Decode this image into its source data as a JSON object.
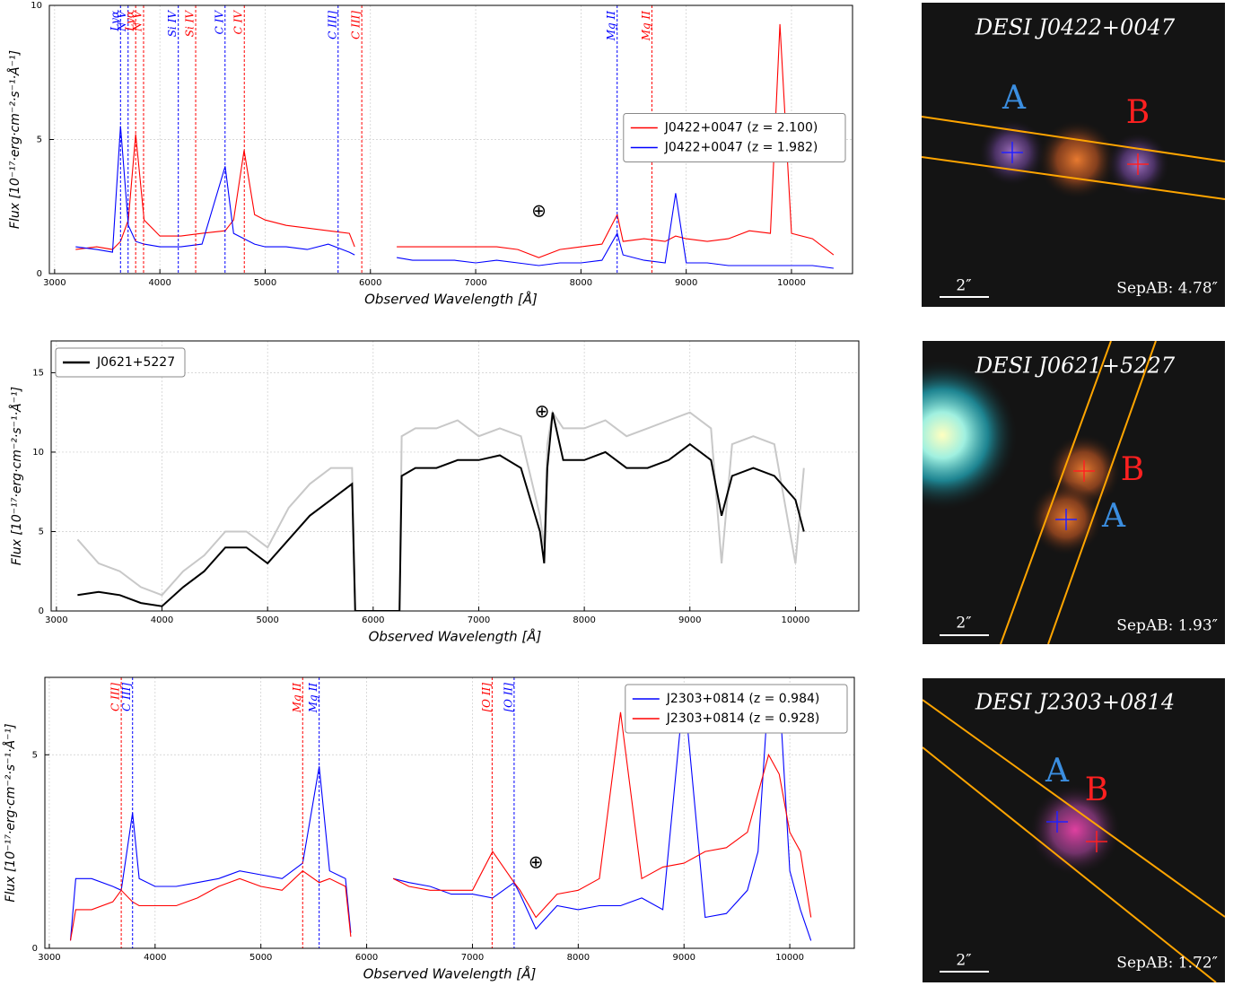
{
  "chart_data": [
    {
      "type": "line",
      "xlabel": "Observed Wavelength [Å]",
      "ylabel": "Flux [10⁻¹⁷·erg·cm⁻²·s⁻¹·Å⁻¹]",
      "xlim": [
        2950,
        10580
      ],
      "ylim": [
        0,
        10
      ],
      "xticks": [
        3000,
        4000,
        5000,
        6000,
        7000,
        8000,
        9000,
        10000
      ],
      "yticks": [
        0,
        5,
        10
      ],
      "grid": true,
      "legend": "center right",
      "x": [
        3200,
        3400,
        3550,
        3626,
        3700,
        3770,
        3850,
        4000,
        4200,
        4400,
        4620,
        4700,
        4800,
        4900,
        5000,
        5200,
        5400,
        5600,
        5800,
        5850,
        6000,
        6250,
        6400,
        6600,
        6800,
        7000,
        7200,
        7400,
        7600,
        7800,
        8000,
        8200,
        8345,
        8400,
        8600,
        8800,
        8900,
        9000,
        9200,
        9400,
        9600,
        9800,
        9890,
        10000,
        10200,
        10400
      ],
      "series": [
        {
          "name": "J0422+0047 (z = 2.100)",
          "color": "#ff0000",
          "values": [
            0.9,
            1.0,
            0.9,
            1.2,
            2.0,
            5.2,
            2.0,
            1.4,
            1.4,
            1.5,
            1.6,
            2.0,
            4.6,
            2.2,
            2.0,
            1.8,
            1.7,
            1.6,
            1.5,
            1.0,
            null,
            1.0,
            1.0,
            1.0,
            1.0,
            1.0,
            1.0,
            0.9,
            0.6,
            0.9,
            1.0,
            1.1,
            2.2,
            1.2,
            1.3,
            1.2,
            1.4,
            1.3,
            1.2,
            1.3,
            1.6,
            1.5,
            9.3,
            1.5,
            1.3,
            0.7
          ]
        },
        {
          "name": "J0422+0047 (z = 1.982)",
          "color": "#0000ff",
          "values": [
            1.0,
            0.9,
            0.8,
            5.5,
            1.8,
            1.2,
            1.1,
            1.0,
            1.0,
            1.1,
            4.0,
            1.5,
            1.3,
            1.1,
            1.0,
            1.0,
            0.9,
            1.1,
            0.8,
            0.7,
            null,
            0.6,
            0.5,
            0.5,
            0.5,
            0.4,
            0.5,
            0.4,
            0.3,
            0.4,
            0.4,
            0.5,
            1.5,
            0.7,
            0.5,
            0.4,
            3.0,
            0.4,
            0.4,
            0.3,
            0.3,
            0.3,
            0.3,
            0.3,
            0.3,
            0.2
          ]
        }
      ],
      "lines": [
        {
          "label": "Lyα",
          "x": 3626,
          "color": "#0000ff"
        },
        {
          "label": "N V",
          "x": 3698,
          "color": "#0000ff"
        },
        {
          "label": "Si IV",
          "x": 4175,
          "color": "#0000ff"
        },
        {
          "label": "C IV",
          "x": 4619,
          "color": "#0000ff"
        },
        {
          "label": "C III]",
          "x": 5693,
          "color": "#0000ff"
        },
        {
          "label": "Mg II",
          "x": 8344,
          "color": "#0000ff"
        },
        {
          "label": "Lyα",
          "x": 3770,
          "color": "#ff0000"
        },
        {
          "label": "N V",
          "x": 3845,
          "color": "#ff0000"
        },
        {
          "label": "Si IV",
          "x": 4340,
          "color": "#ff0000"
        },
        {
          "label": "C IV",
          "x": 4802,
          "color": "#ff0000"
        },
        {
          "label": "C III]",
          "x": 5918,
          "color": "#ff0000"
        },
        {
          "label": "Mg II",
          "x": 8674,
          "color": "#ff0000"
        }
      ],
      "annotation": {
        "text": "⊕",
        "x": 7600,
        "y": 2.3
      }
    },
    {
      "type": "line",
      "xlabel": "Observed Wavelength [Å]",
      "ylabel": "Flux [10⁻¹⁷·erg·cm⁻²·s⁻¹·Å⁻¹]",
      "xlim": [
        2950,
        10600
      ],
      "ylim": [
        0,
        17
      ],
      "xticks": [
        3000,
        4000,
        5000,
        6000,
        7000,
        8000,
        9000,
        10000
      ],
      "yticks": [
        0,
        5,
        10,
        15
      ],
      "grid": true,
      "legend": "upper left",
      "x": [
        3200,
        3400,
        3600,
        3800,
        4000,
        4200,
        4400,
        4600,
        4800,
        5000,
        5200,
        5400,
        5600,
        5800,
        5830,
        5850,
        6000,
        6250,
        6270,
        6400,
        6600,
        6800,
        7000,
        7200,
        7400,
        7580,
        7620,
        7650,
        7700,
        7800,
        8000,
        8200,
        8400,
        8600,
        8800,
        9000,
        9200,
        9300,
        9400,
        9600,
        9800,
        10000,
        10080
      ],
      "series": [
        {
          "color": "#c8c8c8",
          "values": [
            4.5,
            3.0,
            2.5,
            1.5,
            1.0,
            2.5,
            3.5,
            5.0,
            5.0,
            4.0,
            6.5,
            8.0,
            9.0,
            9.0,
            0,
            0,
            0,
            0,
            11.0,
            11.5,
            11.5,
            12.0,
            11.0,
            11.5,
            11.0,
            6.0,
            4.0,
            10.5,
            12.5,
            11.5,
            11.5,
            12.0,
            11.0,
            11.5,
            12.0,
            12.5,
            11.5,
            3.0,
            10.5,
            11.0,
            10.5,
            3.0,
            9.0
          ]
        },
        {
          "name": "J0621+5227",
          "color": "#000000",
          "values": [
            1.0,
            1.2,
            1.0,
            0.5,
            0.3,
            1.5,
            2.5,
            4.0,
            4.0,
            3.0,
            4.5,
            6.0,
            7.0,
            8.0,
            0,
            0,
            0,
            0,
            8.5,
            9.0,
            9.0,
            9.5,
            9.5,
            9.8,
            9.0,
            5.0,
            3.0,
            9.0,
            12.5,
            9.5,
            9.5,
            10.0,
            9.0,
            9.0,
            9.5,
            10.5,
            9.5,
            6.0,
            8.5,
            9.0,
            8.5,
            7.0,
            5.0
          ]
        }
      ],
      "annotation": {
        "text": "⊕",
        "x": 7600,
        "y": 12.5
      }
    },
    {
      "type": "line",
      "xlabel": "Observed Wavelength [Å]",
      "ylabel": "Flux [10⁻¹⁷·erg·cm⁻²·s⁻¹·Å⁻¹]",
      "xlim": [
        2958,
        10610
      ],
      "ylim": [
        0,
        7
      ],
      "xticks": [
        3000,
        4000,
        5000,
        6000,
        7000,
        8000,
        9000,
        10000
      ],
      "yticks": [
        0,
        5
      ],
      "grid": true,
      "legend": "upper right",
      "x": [
        3200,
        3250,
        3400,
        3600,
        3680,
        3787,
        3850,
        4000,
        4200,
        4400,
        4600,
        4800,
        5000,
        5200,
        5395,
        5551,
        5650,
        5800,
        5850,
        6000,
        6250,
        6400,
        6600,
        6800,
        7000,
        7190,
        7394,
        7450,
        7600,
        7800,
        8000,
        8200,
        8400,
        8600,
        8800,
        9000,
        9200,
        9400,
        9600,
        9700,
        9800,
        9900,
        10000,
        10100,
        10200
      ],
      "series": [
        {
          "name": "J2303+0814 (z = 0.984)",
          "color": "#0000ff",
          "values": [
            0.2,
            1.8,
            1.8,
            1.6,
            1.5,
            3.5,
            1.8,
            1.6,
            1.6,
            1.7,
            1.8,
            2.0,
            1.9,
            1.8,
            2.2,
            4.7,
            2.0,
            1.8,
            0.4,
            null,
            1.8,
            1.7,
            1.6,
            1.4,
            1.4,
            1.3,
            1.7,
            1.4,
            0.5,
            1.1,
            1.0,
            1.1,
            1.1,
            1.3,
            1.0,
            6.7,
            0.8,
            0.9,
            1.5,
            2.5,
            6.7,
            6.7,
            2.0,
            1.0,
            0.2
          ]
        },
        {
          "name": "J2303+0814 (z = 0.928)",
          "color": "#ff0000",
          "values": [
            0.2,
            1.0,
            1.0,
            1.2,
            1.5,
            1.2,
            1.1,
            1.1,
            1.1,
            1.3,
            1.6,
            1.8,
            1.6,
            1.5,
            2.0,
            1.7,
            1.8,
            1.6,
            0.3,
            null,
            1.8,
            1.6,
            1.5,
            1.5,
            1.5,
            2.5,
            1.7,
            1.5,
            0.8,
            1.4,
            1.5,
            1.8,
            6.1,
            1.8,
            2.1,
            2.2,
            2.5,
            2.6,
            3.0,
            4.0,
            5.0,
            4.5,
            3.0,
            2.5,
            0.8
          ]
        }
      ],
      "lines": [
        {
          "label": "C III]",
          "x": 3680,
          "color": "#ff0000"
        },
        {
          "label": "C III]",
          "x": 3787,
          "color": "#0000ff"
        },
        {
          "label": "Mg II",
          "x": 5395,
          "color": "#ff0000"
        },
        {
          "label": "Mg II",
          "x": 5551,
          "color": "#0000ff"
        },
        {
          "label": "[O II]",
          "x": 7186,
          "color": "#ff0000"
        },
        {
          "label": "[O II]",
          "x": 7394,
          "color": "#0000ff"
        }
      ],
      "annotation": {
        "text": "⊕",
        "x": 7600,
        "y": 2.2
      }
    }
  ],
  "cutouts": [
    {
      "title": "DESI J0422+0047",
      "a": "A",
      "b": "B",
      "scale": "2″",
      "sep": "SepAB: 4.78″"
    },
    {
      "title": "DESI J0621+5227",
      "a": "A",
      "b": "B",
      "scale": "2″",
      "sep": "SepAB: 1.93″"
    },
    {
      "title": "DESI J2303+0814",
      "a": "A",
      "b": "B",
      "scale": "2″",
      "sep": "SepAB: 1.72″"
    }
  ]
}
